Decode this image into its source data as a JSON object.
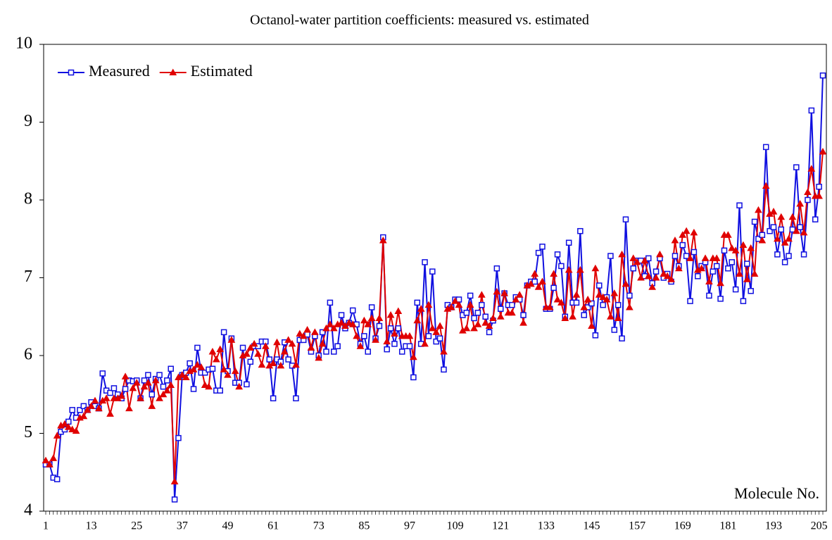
{
  "chart_data": {
    "type": "line",
    "title": "Octanol-water partition coefficients: measured vs. estimated",
    "x_label": "Molecule No.",
    "categories": [
      "1",
      null,
      null,
      null,
      null,
      null,
      null,
      null,
      null,
      null,
      null,
      null,
      "13",
      null,
      null,
      null,
      null,
      null,
      null,
      null,
      null,
      null,
      null,
      null,
      "25",
      null,
      null,
      null,
      null,
      null,
      null,
      null,
      null,
      null,
      null,
      null,
      "37",
      null,
      null,
      null,
      null,
      null,
      null,
      null,
      null,
      null,
      null,
      null,
      "49",
      null,
      null,
      null,
      null,
      null,
      null,
      null,
      null,
      null,
      null,
      null,
      "61",
      null,
      null,
      null,
      null,
      null,
      null,
      null,
      null,
      null,
      null,
      null,
      "73",
      null,
      null,
      null,
      null,
      null,
      null,
      null,
      null,
      null,
      null,
      null,
      "85",
      null,
      null,
      null,
      null,
      null,
      null,
      null,
      null,
      null,
      null,
      null,
      "97",
      null,
      null,
      null,
      null,
      null,
      null,
      null,
      null,
      null,
      null,
      null,
      "109",
      null,
      null,
      null,
      null,
      null,
      null,
      null,
      null,
      null,
      null,
      null,
      "121",
      null,
      null,
      null,
      null,
      null,
      null,
      null,
      null,
      null,
      null,
      null,
      "133",
      null,
      null,
      null,
      null,
      null,
      null,
      null,
      null,
      null,
      null,
      null,
      "145",
      null,
      null,
      null,
      null,
      null,
      null,
      null,
      null,
      null,
      null,
      null,
      "157",
      null,
      null,
      null,
      null,
      null,
      null,
      null,
      null,
      null,
      null,
      null,
      "169",
      null,
      null,
      null,
      null,
      null,
      null,
      null,
      null,
      null,
      null,
      null,
      "181",
      null,
      null,
      null,
      null,
      null,
      null,
      null,
      null,
      null,
      null,
      null,
      "193",
      null,
      null,
      null,
      null,
      null,
      null,
      null,
      null,
      null,
      null,
      null,
      "205",
      null
    ],
    "series": [
      {
        "name": "Measured",
        "color": "#1010e0",
        "marker": "square",
        "values": [
          4.6,
          4.6,
          4.43,
          4.41,
          5.02,
          5.05,
          5.15,
          5.3,
          5.2,
          5.3,
          5.35,
          5.3,
          5.4,
          5.35,
          5.32,
          5.77,
          5.55,
          5.52,
          5.58,
          5.5,
          5.45,
          5.57,
          5.68,
          5.67,
          5.68,
          5.45,
          5.68,
          5.75,
          5.5,
          5.7,
          5.75,
          5.6,
          5.68,
          5.83,
          4.15,
          4.94,
          5.75,
          5.78,
          5.9,
          5.57,
          6.1,
          5.78,
          5.78,
          5.82,
          5.83,
          5.55,
          5.55,
          6.3,
          5.8,
          6.22,
          5.65,
          5.65,
          6.1,
          5.63,
          5.92,
          6.12,
          6.12,
          6.18,
          6.18,
          5.95,
          5.45,
          5.95,
          5.92,
          6.17,
          5.95,
          5.87,
          5.45,
          6.2,
          6.2,
          6.27,
          6.05,
          6.25,
          6.0,
          6.3,
          6.05,
          6.68,
          6.05,
          6.12,
          6.52,
          6.35,
          6.42,
          6.58,
          6.4,
          6.15,
          6.25,
          6.05,
          6.62,
          6.22,
          6.38,
          7.52,
          6.08,
          6.35,
          6.15,
          6.35,
          6.05,
          6.12,
          6.12,
          5.72,
          6.68,
          6.15,
          7.2,
          6.25,
          7.08,
          6.18,
          6.22,
          5.82,
          6.65,
          6.62,
          6.72,
          6.72,
          6.52,
          6.55,
          6.77,
          6.48,
          6.55,
          6.65,
          6.5,
          6.3,
          6.45,
          7.12,
          6.6,
          6.8,
          6.65,
          6.65,
          6.75,
          6.72,
          6.52,
          6.9,
          6.95,
          6.95,
          7.32,
          7.4,
          6.6,
          6.6,
          6.87,
          7.3,
          7.15,
          6.5,
          7.45,
          6.68,
          6.68,
          7.6,
          6.52,
          6.62,
          6.67,
          6.26,
          6.9,
          6.65,
          6.75,
          7.28,
          6.33,
          6.65,
          6.22,
          7.75,
          6.77,
          7.12,
          7.22,
          7.22,
          7.02,
          7.25,
          6.93,
          7.08,
          7.25,
          7.0,
          7.05,
          6.95,
          7.28,
          7.15,
          7.42,
          7.28,
          6.7,
          7.33,
          7.02,
          7.15,
          7.2,
          6.77,
          7.08,
          7.15,
          6.73,
          7.35,
          7.12,
          7.2,
          6.85,
          7.93,
          6.7,
          7.18,
          6.83,
          7.72,
          7.5,
          7.55,
          8.68,
          7.6,
          7.65,
          7.3,
          7.62,
          7.2,
          7.28,
          7.62,
          8.42,
          7.65,
          7.3,
          8.0,
          9.15,
          7.75,
          8.17,
          9.6
        ]
      },
      {
        "name": "Estimated",
        "color": "#e00000",
        "marker": "triangle",
        "values": [
          4.65,
          4.6,
          4.68,
          4.97,
          5.1,
          5.12,
          5.08,
          5.05,
          5.03,
          5.2,
          5.22,
          5.3,
          5.35,
          5.42,
          5.32,
          5.42,
          5.45,
          5.25,
          5.45,
          5.45,
          5.48,
          5.73,
          5.32,
          5.58,
          5.65,
          5.45,
          5.6,
          5.65,
          5.35,
          5.68,
          5.45,
          5.5,
          5.55,
          5.62,
          4.38,
          5.72,
          5.75,
          5.72,
          5.8,
          5.82,
          5.88,
          5.85,
          5.62,
          5.6,
          6.05,
          5.95,
          6.08,
          5.82,
          5.75,
          6.2,
          5.8,
          5.6,
          6.0,
          6.02,
          6.1,
          6.15,
          6.02,
          5.88,
          6.12,
          5.87,
          5.9,
          6.17,
          5.87,
          6.05,
          6.2,
          6.15,
          5.88,
          6.28,
          6.25,
          6.33,
          6.1,
          6.3,
          5.97,
          6.15,
          6.35,
          6.4,
          6.35,
          6.4,
          6.42,
          6.38,
          6.42,
          6.4,
          6.25,
          6.12,
          6.45,
          6.4,
          6.48,
          6.2,
          6.48,
          7.48,
          6.18,
          6.52,
          6.28,
          6.57,
          6.25,
          6.25,
          6.25,
          5.98,
          6.45,
          6.6,
          6.15,
          6.65,
          6.35,
          6.3,
          6.38,
          6.05,
          6.6,
          6.62,
          6.7,
          6.65,
          6.32,
          6.35,
          6.65,
          6.35,
          6.4,
          6.78,
          6.42,
          6.38,
          6.48,
          6.82,
          6.5,
          6.8,
          6.55,
          6.55,
          6.72,
          6.78,
          6.42,
          6.9,
          6.92,
          7.05,
          6.88,
          6.95,
          6.62,
          6.62,
          7.05,
          6.72,
          6.68,
          6.48,
          7.1,
          6.5,
          6.78,
          7.1,
          6.62,
          6.72,
          6.38,
          7.12,
          6.78,
          6.75,
          6.72,
          6.5,
          6.8,
          6.48,
          7.3,
          6.92,
          6.62,
          7.25,
          7.2,
          7.0,
          7.22,
          7.02,
          6.88,
          7.0,
          7.3,
          7.05,
          7.02,
          6.98,
          7.48,
          7.12,
          7.55,
          7.6,
          7.25,
          7.58,
          7.1,
          7.12,
          7.25,
          6.95,
          7.25,
          7.25,
          6.93,
          7.55,
          7.55,
          7.38,
          7.35,
          7.05,
          7.42,
          6.98,
          7.38,
          7.05,
          7.87,
          7.48,
          8.18,
          7.82,
          7.85,
          7.5,
          7.78,
          7.45,
          7.5,
          7.78,
          7.6,
          7.95,
          7.58,
          8.1,
          8.4,
          8.05,
          8.05,
          8.62
        ]
      }
    ],
    "ylim": [
      4,
      10
    ],
    "yticks": [
      4,
      5,
      6,
      7,
      8,
      9,
      10
    ],
    "grid": false,
    "legend": "upper left"
  }
}
